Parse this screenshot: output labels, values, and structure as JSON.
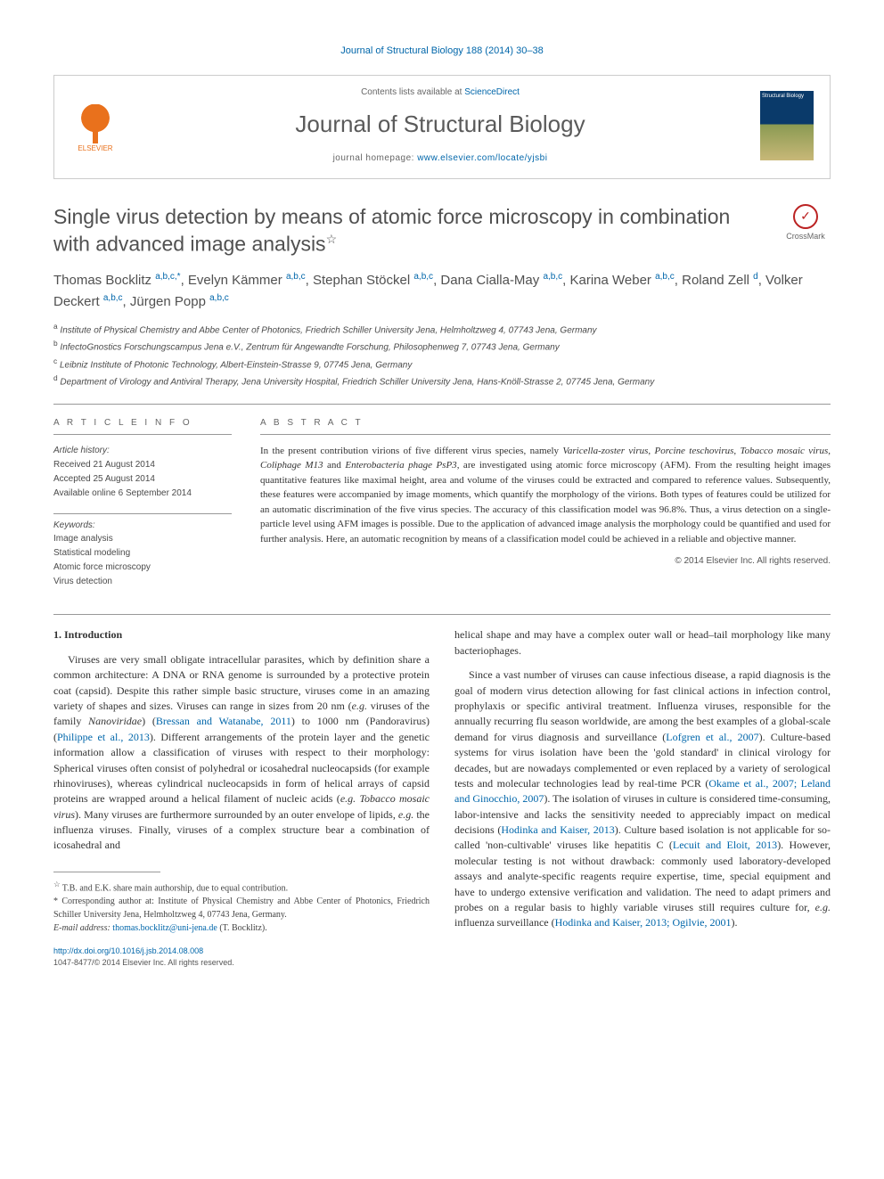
{
  "citation": "Journal of Structural Biology 188 (2014) 30–38",
  "header": {
    "contents_prefix": "Contents lists available at ",
    "contents_link": "ScienceDirect",
    "journal_name": "Journal of Structural Biology",
    "homepage_prefix": "journal homepage: ",
    "homepage_url": "www.elsevier.com/locate/yjsbi",
    "publisher": "ELSEVIER",
    "cover_label": "Structural Biology"
  },
  "crossmark": "CrossMark",
  "title": "Single virus detection by means of atomic force microscopy in combination with advanced image analysis",
  "title_note_marker": "☆",
  "authors_html": "Thomas Bocklitz <sup>a,b,c,*</sup>, Evelyn Kämmer <sup>a,b,c</sup>, Stephan Stöckel <sup>a,b,c</sup>, Dana Cialla-May <sup>a,b,c</sup>, Karina Weber <sup>a,b,c</sup>, Roland Zell <sup>d</sup>, Volker Deckert <sup>a,b,c</sup>, Jürgen Popp <sup>a,b,c</sup>",
  "affiliations": [
    {
      "key": "a",
      "text": "Institute of Physical Chemistry and Abbe Center of Photonics, Friedrich Schiller University Jena, Helmholtzweg 4, 07743 Jena, Germany"
    },
    {
      "key": "b",
      "text": "InfectoGnostics Forschungscampus Jena e.V., Zentrum für Angewandte Forschung, Philosophenweg 7, 07743 Jena, Germany"
    },
    {
      "key": "c",
      "text": "Leibniz Institute of Photonic Technology, Albert-Einstein-Strasse 9, 07745 Jena, Germany"
    },
    {
      "key": "d",
      "text": "Department of Virology and Antiviral Therapy, Jena University Hospital, Friedrich Schiller University Jena, Hans-Knöll-Strasse 2, 07745 Jena, Germany"
    }
  ],
  "info": {
    "heading": "A R T I C L E   I N F O",
    "history_label": "Article history:",
    "history": [
      "Received 21 August 2014",
      "Accepted 25 August 2014",
      "Available online 6 September 2014"
    ],
    "keywords_label": "Keywords:",
    "keywords": [
      "Image analysis",
      "Statistical modeling",
      "Atomic force microscopy",
      "Virus detection"
    ]
  },
  "abstract": {
    "heading": "A B S T R A C T",
    "text": "In the present contribution virions of five different virus species, namely Varicella-zoster virus, Porcine teschovirus, Tobacco mosaic virus, Coliphage M13 and Enterobacteria phage PsP3, are investigated using atomic force microscopy (AFM). From the resulting height images quantitative features like maximal height, area and volume of the viruses could be extracted and compared to reference values. Subsequently, these features were accompanied by image moments, which quantify the morphology of the virions. Both types of features could be utilized for an automatic discrimination of the five virus species. The accuracy of this classification model was 96.8%. Thus, a virus detection on a single-particle level using AFM images is possible. Due to the application of advanced image analysis the morphology could be quantified and used for further analysis. Here, an automatic recognition by means of a classification model could be achieved in a reliable and objective manner.",
    "copyright": "© 2014 Elsevier Inc. All rights reserved."
  },
  "section1": {
    "heading": "1. Introduction",
    "p1a": "Viruses are very small obligate intracellular parasites, which by definition share a common architecture: A DNA or RNA genome is surrounded by a protective protein coat (capsid). Despite this rather simple basic structure, viruses come in an amazing variety of shapes and sizes. Viruses can range in sizes from 20 nm (",
    "p1_em1": "e.g.",
    "p1b": " viruses of the family ",
    "p1_em2": "Nanoviridae",
    "p1c": ") (",
    "p1_ref1": "Bressan and Watanabe, 2011",
    "p1d": ") to 1000 nm (Pandoravirus) (",
    "p1_ref2": "Philippe et al., 2013",
    "p1e": "). Different arrangements of the protein layer and the genetic information allow a classification of viruses with respect to their morphology: Spherical viruses often consist of polyhedral or icosahedral nucleocapsids (for example rhinoviruses), whereas cylindrical nucleocapsids in form of helical arrays of capsid proteins are wrapped around a helical filament of nucleic acids (",
    "p1_em3": "e.g. Tobacco mosaic virus",
    "p1f": "). Many viruses are furthermore surrounded by an outer envelope of lipids, ",
    "p1_em4": "e.g.",
    "p1g": " the influenza viruses. Finally, viruses of a complex structure bear a combination of icosahedral and ",
    "p1_cont": "helical shape and may have a complex outer wall or head–tail morphology like many bacteriophages.",
    "p2a": "Since a vast number of viruses can cause infectious disease, a rapid diagnosis is the goal of modern virus detection allowing for fast clinical actions in infection control, prophylaxis or specific antiviral treatment. Influenza viruses, responsible for the annually recurring flu season worldwide, are among the best examples of a global-scale demand for virus diagnosis and surveillance (",
    "p2_ref1": "Lofgren et al., 2007",
    "p2b": "). Culture-based systems for virus isolation have been the 'gold standard' in clinical virology for decades, but are nowadays complemented or even replaced by a variety of serological tests and molecular technologies lead by real-time PCR (",
    "p2_ref2": "Okame et al., 2007; Leland and Ginocchio, 2007",
    "p2c": "). The isolation of viruses in culture is considered time-consuming, labor-intensive and lacks the sensitivity needed to appreciably impact on medical decisions (",
    "p2_ref3": "Hodinka and Kaiser, 2013",
    "p2d": "). Culture based isolation is not applicable for so-called 'non-cultivable' viruses like hepatitis C (",
    "p2_ref4": "Lecuit and Eloit, 2013",
    "p2e": "). However, molecular testing is not without drawback: commonly used laboratory-developed assays and analyte-specific reagents require expertise, time, special equipment and have to undergo extensive verification and validation. The need to adapt primers and probes on a regular basis to highly variable viruses still requires culture for, ",
    "p2_em1": "e.g.",
    "p2f": " influenza surveillance (",
    "p2_ref5": "Hodinka and Kaiser, 2013; Ogilvie, 2001",
    "p2g": ")."
  },
  "footnotes": {
    "star": "T.B. and E.K. share main authorship, due to equal contribution.",
    "corr_label": "* Corresponding author at: Institute of Physical Chemistry and Abbe Center of Photonics, Friedrich Schiller University Jena, Helmholtzweg 4, 07743 Jena, Germany.",
    "email_label": "E-mail address: ",
    "email": "thomas.bocklitz@uni-jena.de",
    "email_who": " (T. Bocklitz)."
  },
  "footer": {
    "doi": "http://dx.doi.org/10.1016/j.jsb.2014.08.008",
    "issn": "1047-8477/© 2014 Elsevier Inc. All rights reserved."
  },
  "colors": {
    "link": "#0066aa",
    "text": "#333333",
    "muted": "#666666",
    "rule": "#999999",
    "elsevier": "#e9711c"
  }
}
